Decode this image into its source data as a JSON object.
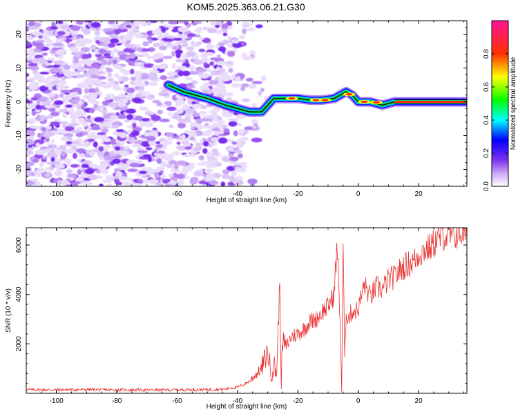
{
  "title": "KOM5.2025.363.06.21.G30",
  "chart_data": [
    {
      "type": "heatmap",
      "name": "spectrogram",
      "xlabel": "Height of straight line (km)",
      "ylabel": "Frequency (Hz)",
      "xlim": [
        -110,
        36
      ],
      "ylim": [
        -25,
        24
      ],
      "xticks": [
        -100,
        -80,
        -60,
        -40,
        -20,
        0,
        20
      ],
      "yticks": [
        -20,
        -10,
        0,
        10,
        20
      ],
      "colorbar": {
        "label": "Normalized spectral amplitude",
        "range": [
          0.0,
          1.0
        ],
        "ticks": [
          0.0,
          0.2,
          0.4,
          0.6,
          0.8
        ],
        "tick_labels": [
          "0.0",
          "0.2",
          "0.4",
          "0.6",
          "0.8"
        ],
        "colors": [
          "#ffffff",
          "#8a2be2",
          "#0000ff",
          "#00ffff",
          "#00ff00",
          "#ffff00",
          "#ff0000",
          "#ff1493"
        ]
      },
      "ridge": {
        "x": [
          -63,
          -58,
          -50,
          -44,
          -40,
          -36,
          -32,
          -28,
          -24,
          -20,
          -16,
          -12,
          -8,
          -6,
          -4,
          -2,
          0,
          4,
          8,
          12,
          16,
          20,
          36
        ],
        "y": [
          5,
          3,
          1,
          -1,
          -2,
          -3,
          -3,
          1,
          1,
          1,
          0.5,
          0.5,
          1,
          2,
          3,
          2,
          0,
          0,
          -1,
          0,
          0,
          0,
          0
        ]
      }
    },
    {
      "type": "line",
      "name": "snr",
      "xlabel": "Height of straight line (km)",
      "ylabel": "SNR (10 * v/v)",
      "xlim": [
        -110,
        36
      ],
      "ylim": [
        0,
        6700
      ],
      "xticks": [
        -100,
        -80,
        -60,
        -40,
        -20,
        0,
        20
      ],
      "yticks": [
        2000,
        4000,
        6000
      ],
      "color": "#e83030",
      "series": [
        {
          "name": "SNR",
          "x": [
            -110,
            -100,
            -90,
            -80,
            -70,
            -60,
            -50,
            -45,
            -40,
            -38,
            -36,
            -34,
            -32,
            -30,
            -29,
            -28,
            -27,
            -26,
            -25.5,
            -25,
            -24,
            -22,
            -20,
            -18,
            -16,
            -14,
            -12,
            -10,
            -8,
            -7,
            -6,
            -5.5,
            -5,
            -4.5,
            -4,
            -3,
            -2,
            0,
            2,
            4,
            6,
            8,
            10,
            12,
            14,
            16,
            18,
            20,
            22,
            24,
            26,
            28,
            30,
            32,
            34,
            36
          ],
          "y": [
            150,
            140,
            150,
            140,
            130,
            140,
            150,
            160,
            250,
            350,
            500,
            750,
            1000,
            1700,
            900,
            1100,
            900,
            4400,
            600,
            2100,
            1900,
            2300,
            2400,
            2600,
            2900,
            3000,
            3300,
            3500,
            4000,
            6000,
            3000,
            100,
            6200,
            1300,
            3200,
            3100,
            3300,
            3400,
            4400,
            3900,
            4300,
            4200,
            4600,
            4700,
            5000,
            5200,
            5300,
            5600,
            5800,
            5900,
            6200,
            6400,
            6300,
            6400,
            6500,
            6500
          ]
        }
      ]
    }
  ]
}
